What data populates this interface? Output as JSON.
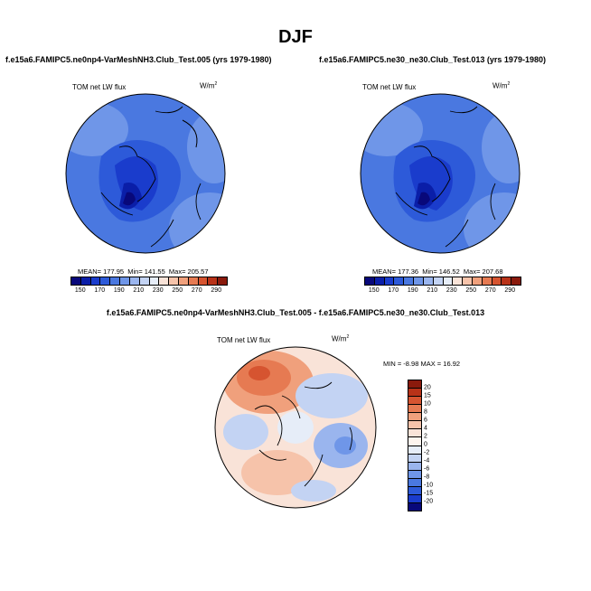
{
  "figure": {
    "season": "DJF",
    "panel_left": {
      "title": "f.e15a6.FAMIPC5.ne0np4-VarMeshNH3.Club_Test.005 (yrs 1979-1980)",
      "variable": "TOM net LW flux",
      "unit_base": "W/m",
      "unit_exp": "2",
      "mean_label": "MEAN= 177.95",
      "min_label": "Min= 141.55",
      "max_label": "Max= 205.57"
    },
    "panel_right": {
      "title": "f.e15a6.FAMIPC5.ne30_ne30.Club_Test.013 (yrs 1979-1980)",
      "variable": "TOM net LW flux",
      "unit_base": "W/m",
      "unit_exp": "2",
      "mean_label": "MEAN= 177.36",
      "min_label": "Min= 146.52",
      "max_label": "Max= 207.68"
    },
    "panel_diff": {
      "title": "f.e15a6.FAMIPC5.ne0np4-VarMeshNH3.Club_Test.005 - f.e15a6.FAMIPC5.ne30_ne30.Club_Test.013",
      "variable": "TOM net LW flux",
      "unit_base": "W/m",
      "unit_exp": "2",
      "minmax_label": "MIN = -8.98 MAX = 16.92"
    },
    "colorbar_abs": {
      "tick_labels": [
        "150",
        "170",
        "190",
        "210",
        "230",
        "250",
        "270",
        "290"
      ],
      "colors": [
        "#08087a",
        "#0a1ea8",
        "#1a3ccc",
        "#2d5ad9",
        "#4a78e0",
        "#6f96e8",
        "#9ab5ee",
        "#c3d3f3",
        "#e6edf8",
        "#f9e3d8",
        "#f6c3aa",
        "#f0a07c",
        "#e67a52",
        "#d65430",
        "#b83218",
        "#8a1a0c"
      ]
    },
    "colorbar_diff": {
      "tick_labels": [
        "20",
        "15",
        "10",
        "8",
        "6",
        "4",
        "2",
        "0",
        "-2",
        "-4",
        "-6",
        "-8",
        "-10",
        "-15",
        "-20"
      ],
      "colors": [
        "#8a1a0c",
        "#b83218",
        "#d65430",
        "#e67a52",
        "#f0a07c",
        "#f6c3aa",
        "#f9e3d8",
        "#fdf4ee",
        "#e6edf8",
        "#c3d3f3",
        "#9ab5ee",
        "#6f96e8",
        "#4a78e0",
        "#2d5ad9",
        "#1a3ccc",
        "#08087a"
      ]
    }
  }
}
